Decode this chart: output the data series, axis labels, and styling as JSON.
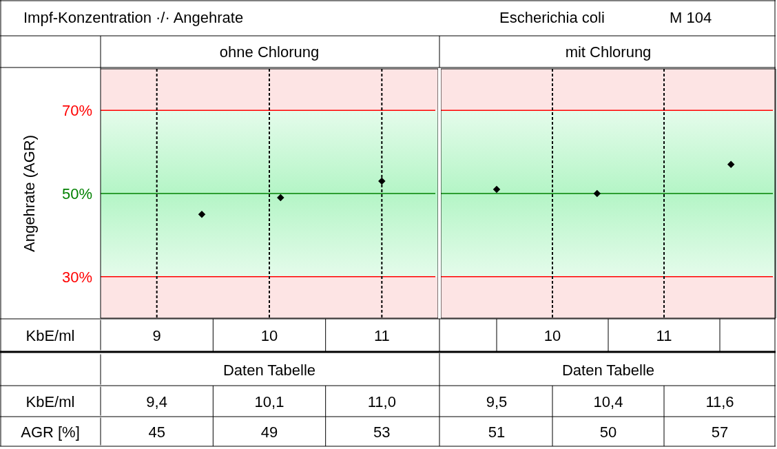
{
  "chart_data": [
    {
      "type": "scatter",
      "title": "ohne Chlorung",
      "ylabel": "Angehrate (AGR)",
      "xlabel": "KbE/ml",
      "annotations": [
        "Impf-Konzentration ·/· Angehrate",
        "Escherichia coli",
        "M 104",
        "Daten Tabelle",
        "KbE/ml",
        "AGR [%]",
        "9,4",
        "10,1",
        "11,0",
        "45",
        "49",
        "53"
      ],
      "series": [
        {
          "color": "#000000",
          "x": [
            9.4,
            10.1,
            11.0
          ],
          "values": [
            45,
            49,
            53
          ]
        }
      ],
      "xlim": [
        8.5,
        11.5
      ],
      "xticks": [
        9,
        10,
        11
      ],
      "ylim": [
        20,
        80
      ],
      "yticks": [
        {
          "value": 30,
          "label": "30%"
        },
        {
          "value": 50,
          "label": "50%"
        },
        {
          "value": 70,
          "label": "70%"
        }
      ],
      "bands": [
        {
          "axis": "y",
          "from": 20,
          "to": 30,
          "color": "#fde4e4"
        },
        {
          "axis": "y",
          "from": 30,
          "to": 70,
          "color": "#b4f5c6"
        },
        {
          "axis": "y",
          "from": 70,
          "to": 80,
          "color": "#fde4e4"
        }
      ],
      "ref_lines": [
        {
          "axis": "y",
          "value": 70,
          "color": "#ff0000"
        },
        {
          "axis": "y",
          "value": 50,
          "color": "#008000"
        },
        {
          "axis": "y",
          "value": 30,
          "color": "#ff0000"
        }
      ],
      "grid": "x",
      "marker": "diamond"
    },
    {
      "type": "scatter",
      "title": "mit Chlorung",
      "annotations": [
        "Daten Tabelle",
        "9,5",
        "10,4",
        "11,6",
        "51",
        "50",
        "57"
      ],
      "series": [
        {
          "color": "#000000",
          "x": [
            9.5,
            10.4,
            11.6
          ],
          "values": [
            51,
            50,
            57
          ]
        }
      ],
      "xlim": [
        9,
        12
      ],
      "xticks": [
        10,
        11
      ],
      "ylim": [
        20,
        80
      ],
      "bands": [
        {
          "axis": "y",
          "from": 20,
          "to": 30,
          "color": "#fde4e4"
        },
        {
          "axis": "y",
          "from": 30,
          "to": 70,
          "color": "#b4f5c6"
        },
        {
          "axis": "y",
          "from": 70,
          "to": 80,
          "color": "#fde4e4"
        }
      ],
      "ref_lines": [
        {
          "axis": "y",
          "value": 70,
          "color": "#ff0000"
        },
        {
          "axis": "y",
          "value": 50,
          "color": "#008000"
        },
        {
          "axis": "y",
          "value": 30,
          "color": "#ff0000"
        }
      ],
      "grid": "x",
      "marker": "diamond",
      "tick_labels": "x"
    }
  ]
}
